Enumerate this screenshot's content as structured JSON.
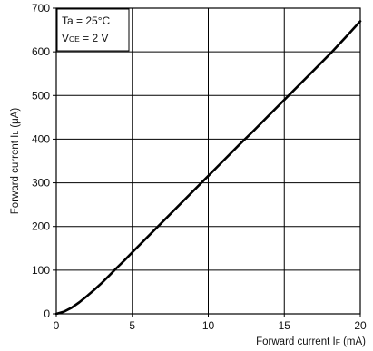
{
  "chart_data": {
    "type": "line",
    "xlabel": "Forward current I",
    "xlabel_sub": "F",
    "xlabel_unit": " (mA)",
    "ylabel": "Forward current I",
    "ylabel_sub": "L",
    "ylabel_unit": " (μA)",
    "xlim": [
      0,
      20
    ],
    "ylim": [
      0,
      700
    ],
    "xticks": [
      0,
      5,
      10,
      15,
      20
    ],
    "yticks": [
      0,
      100,
      200,
      300,
      400,
      500,
      600,
      700
    ],
    "xtick_labels": [
      "0",
      "5",
      "10",
      "15",
      "20"
    ],
    "ytick_labels": [
      "0",
      "100",
      "200",
      "300",
      "400",
      "500",
      "600",
      "700"
    ],
    "grid": true,
    "conditions": {
      "line1": "Ta = 25°C",
      "line2_prefix": "V",
      "line2_sub": "CE",
      "line2_suffix": " = 2 V"
    },
    "series": [
      {
        "color": "#000000",
        "x": [
          0,
          0.5,
          1,
          1.5,
          2,
          2.5,
          3,
          3.5,
          4,
          4.5,
          5,
          6,
          7,
          8,
          9,
          10,
          11,
          12,
          13,
          14,
          15,
          16,
          17,
          18,
          19,
          20
        ],
        "y": [
          0,
          5,
          14,
          26,
          40,
          55,
          71,
          88,
          106,
          123,
          141,
          176,
          211,
          246,
          281,
          316,
          351,
          386,
          420,
          455,
          490,
          525,
          560,
          595,
          632,
          670
        ]
      }
    ]
  }
}
